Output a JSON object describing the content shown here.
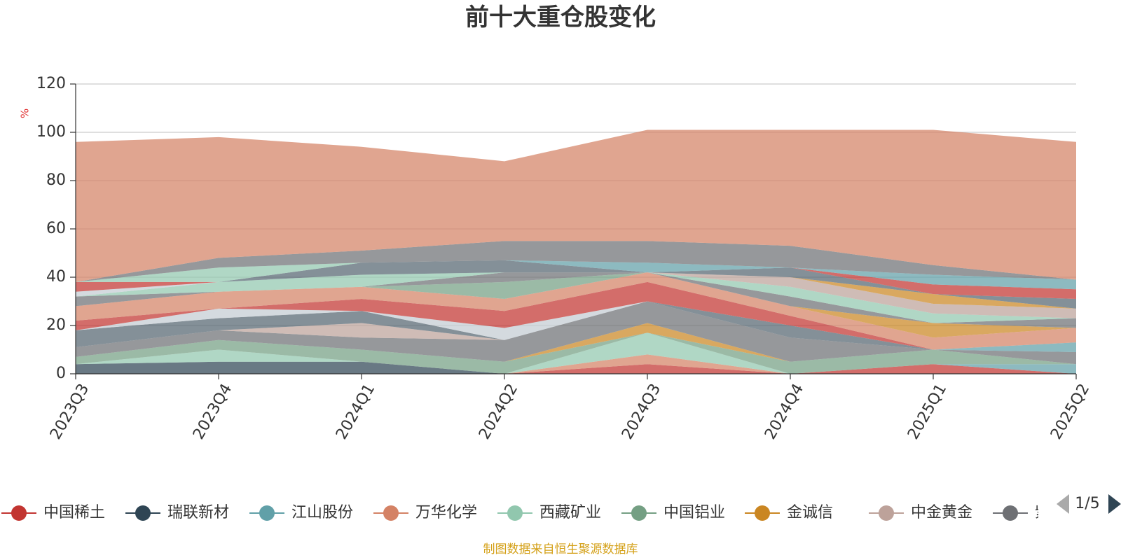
{
  "chart_data": {
    "type": "area",
    "title": "前十大重仓股变化",
    "ylabel": "%",
    "ylim": [
      0,
      120
    ],
    "yticks": [
      0,
      20,
      40,
      60,
      80,
      100,
      120
    ],
    "grid": true,
    "legend_position": "bottom",
    "categories": [
      "2023Q3",
      "2023Q4",
      "2024Q1",
      "2024Q2",
      "2024Q3",
      "2024Q4",
      "2025Q1",
      "2025Q2"
    ],
    "series": [
      {
        "name": "中国稀土",
        "color": "#c23531",
        "values": [
          0,
          0,
          0,
          0,
          4,
          0,
          4,
          0
        ]
      },
      {
        "name": "",
        "color": "#2f4554",
        "values": [
          4,
          5,
          5,
          0,
          0,
          0,
          0,
          0
        ]
      },
      {
        "name": "",
        "color": "#61a0a8",
        "values": [
          0,
          0,
          0,
          0,
          0,
          0,
          0,
          4
        ]
      },
      {
        "name": "",
        "color": "#d48265",
        "values": [
          0,
          0,
          0,
          0,
          4,
          0,
          0,
          0
        ]
      },
      {
        "name": "",
        "color": "#91c7ae",
        "values": [
          0,
          5,
          0,
          0,
          9,
          0,
          0,
          0
        ]
      },
      {
        "name": "",
        "color": "#749f83",
        "values": [
          3,
          4,
          5,
          5,
          0,
          5,
          6,
          0
        ]
      },
      {
        "name": "",
        "color": "#ca8622",
        "values": [
          0,
          0,
          0,
          0,
          4,
          0,
          0,
          0
        ]
      },
      {
        "name": "",
        "color": "#6e7074",
        "values": [
          4,
          4,
          5,
          9,
          9,
          10,
          0,
          5
        ]
      },
      {
        "name": "",
        "color": "#bda29a",
        "values": [
          0,
          0,
          6,
          0,
          0,
          0,
          0,
          0
        ]
      },
      {
        "name": "",
        "color": "#546570",
        "values": [
          7,
          5,
          5,
          0,
          0,
          5,
          0,
          0
        ]
      },
      {
        "name": "",
        "color": "#c4ccd3",
        "values": [
          0,
          4,
          0,
          5,
          0,
          0,
          0,
          0
        ]
      },
      {
        "name": "",
        "color": "#61a0a8",
        "values": [
          0,
          0,
          0,
          0,
          0,
          0,
          0,
          4
        ]
      },
      {
        "name": "",
        "color": "#c23531",
        "values": [
          4,
          0,
          5,
          7,
          8,
          4,
          0,
          0
        ]
      },
      {
        "name": "",
        "color": "#d48265",
        "values": [
          6,
          7,
          5,
          5,
          4,
          4,
          5,
          6
        ]
      },
      {
        "name": "",
        "color": "#749f83",
        "values": [
          0,
          0,
          0,
          7,
          0,
          0,
          0,
          0
        ]
      },
      {
        "name": "",
        "color": "#ca8622",
        "values": [
          0,
          0,
          0,
          0,
          0,
          0,
          6,
          0
        ]
      },
      {
        "name": "",
        "color": "#6e7074",
        "values": [
          4,
          0,
          0,
          4,
          0,
          4,
          0,
          4
        ]
      },
      {
        "name": "",
        "color": "#91c7ae",
        "values": [
          0,
          4,
          5,
          0,
          0,
          4,
          4,
          0
        ]
      },
      {
        "name": "",
        "color": "#bda29a",
        "values": [
          0,
          0,
          0,
          0,
          0,
          4,
          4,
          4
        ]
      },
      {
        "name": "",
        "color": "#c4ccd3",
        "values": [
          2,
          0,
          0,
          0,
          0,
          0,
          0,
          0
        ]
      },
      {
        "name": "",
        "color": "#ca8622",
        "values": [
          0,
          0,
          0,
          0,
          0,
          0,
          4,
          0
        ]
      },
      {
        "name": "",
        "color": "#546570",
        "values": [
          0,
          0,
          5,
          5,
          0,
          4,
          0,
          4
        ]
      },
      {
        "name": "",
        "color": "#c23531",
        "values": [
          4,
          0,
          0,
          0,
          0,
          0,
          4,
          4
        ]
      },
      {
        "name": "",
        "color": "#61a0a8",
        "values": [
          0,
          0,
          0,
          0,
          4,
          0,
          4,
          4
        ]
      },
      {
        "name": "",
        "color": "#91c7ae",
        "values": [
          0,
          6,
          0,
          0,
          0,
          0,
          0,
          0
        ]
      },
      {
        "name": "",
        "color": "#6e7074",
        "values": [
          0,
          4,
          5,
          8,
          9,
          9,
          4,
          0
        ]
      },
      {
        "name": "",
        "color": "#d48265",
        "values": [
          58,
          50,
          43,
          33,
          46,
          48,
          56,
          57
        ]
      }
    ]
  },
  "legend": {
    "items": [
      {
        "name": "中国稀土",
        "color": "#c23531"
      },
      {
        "name": "瑞联新材",
        "color": "#2f4554"
      },
      {
        "name": "江山股份",
        "color": "#61a0a8"
      },
      {
        "name": "万华化学",
        "color": "#d48265"
      },
      {
        "name": "西藏矿业",
        "color": "#91c7ae"
      },
      {
        "name": "中国铝业",
        "color": "#749f83"
      },
      {
        "name": "金诚信",
        "color": "#ca8622"
      },
      {
        "name": "中金黄金",
        "color": "#bda29a"
      },
      {
        "name": "紫",
        "color": "#6e7074"
      }
    ],
    "page": "1/5"
  },
  "source": "制图数据来自恒生聚源数据库"
}
